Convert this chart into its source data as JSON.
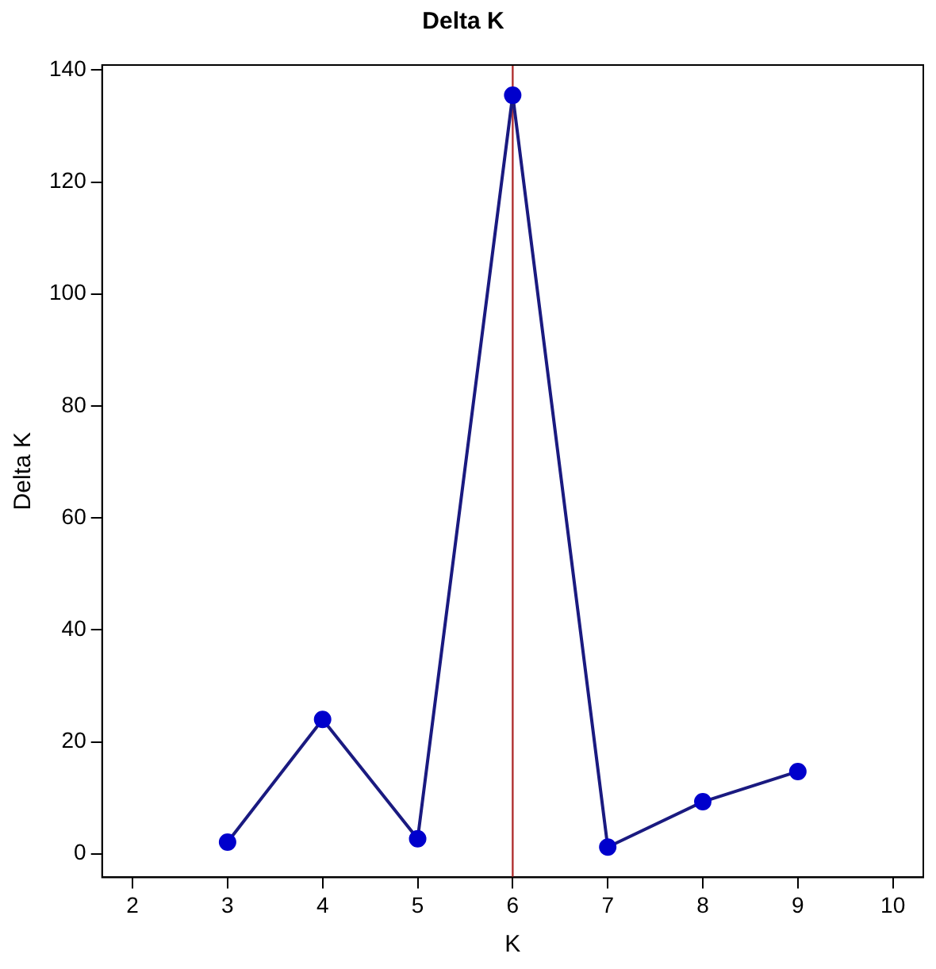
{
  "chart_data": {
    "type": "line",
    "title": "Delta K",
    "xlabel": "K",
    "ylabel": "Delta K",
    "x": [
      3,
      4,
      5,
      6,
      7,
      8,
      9
    ],
    "series": [
      {
        "color": "#0000cc",
        "values": [
          2.1,
          24,
          2.7,
          135.5,
          1.2,
          9.3,
          14.7
        ]
      }
    ],
    "xlim": [
      1.68,
      10.32
    ],
    "xticks": [
      2,
      3,
      4,
      5,
      6,
      7,
      8,
      9,
      10
    ],
    "ylim": [
      -4.2,
      140.9
    ],
    "yticks": [
      0,
      20,
      40,
      60,
      80,
      100,
      120,
      140
    ],
    "ref_lines": [
      {
        "axis": "x",
        "value": 6,
        "color": "#b03030"
      }
    ],
    "marker": "circle",
    "line_style": "solid",
    "grid": false,
    "legend": false
  }
}
